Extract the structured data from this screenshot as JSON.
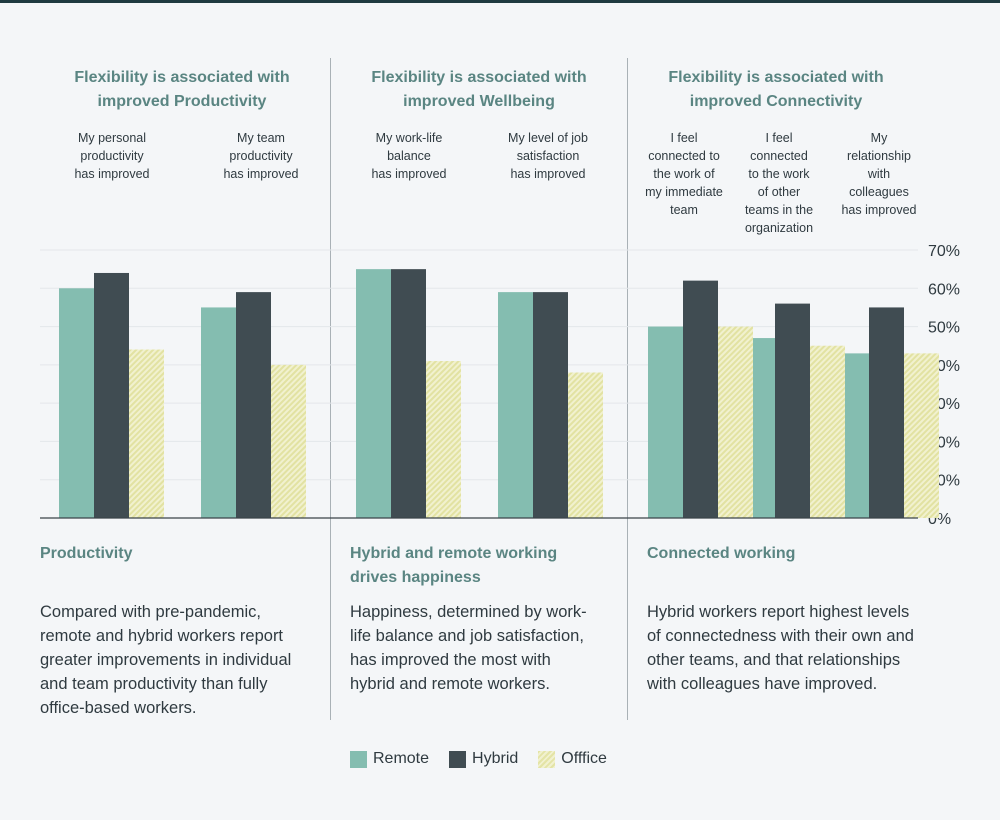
{
  "colors": {
    "remote": "#84bdb0",
    "hybrid": "#404c52",
    "office": "#e6e6ad",
    "heading": "#5a8582"
  },
  "panels": [
    {
      "title_line1": "Flexibility is associated with",
      "title_line2": "improved Productivity",
      "heading": "Productivity",
      "heading_line2": "",
      "body_lines": [
        "Compared with pre-pandemic,",
        "remote and hybrid workers report",
        "greater improvements in individual",
        "and team productivity than fully",
        "office-based workers."
      ]
    },
    {
      "title_line1": "Flexibility is associated with",
      "title_line2": "improved Wellbeing",
      "heading": "Hybrid and remote working",
      "heading_line2": "drives happiness",
      "body_lines": [
        "Happiness, determined by work-",
        "life balance and job satisfaction,",
        "has improved the most with",
        "hybrid and remote workers."
      ]
    },
    {
      "title_line1": "Flexibility is associated with",
      "title_line2": "improved Connectivity",
      "heading": "Connected working",
      "heading_line2": "",
      "body_lines": [
        "Hybrid workers report highest levels",
        "of connectedness with their own and",
        "other teams, and that relationships",
        "with colleagues have improved."
      ]
    }
  ],
  "chart_data": {
    "type": "bar",
    "categories": [
      [
        "My personal",
        "productivity",
        "has improved"
      ],
      [
        "My team",
        "productivity",
        "has improved"
      ],
      [
        "My work-life",
        "balance",
        "has improved"
      ],
      [
        "My level of job",
        "satisfaction",
        "has improved"
      ],
      [
        "I feel",
        "connected to",
        "the work of",
        "my immediate",
        "team"
      ],
      [
        "I feel",
        "connected",
        "to the work",
        "of other",
        "teams in the",
        "organization"
      ],
      [
        "My",
        "relationship",
        "with",
        "colleagues",
        "has improved"
      ]
    ],
    "series": [
      {
        "name": "Remote",
        "values": [
          60,
          55,
          65,
          59,
          50,
          47,
          43
        ]
      },
      {
        "name": "Hybrid",
        "values": [
          64,
          59,
          65,
          59,
          62,
          56,
          55
        ]
      },
      {
        "name": "Offfice",
        "values": [
          44,
          40,
          41,
          38,
          50,
          45,
          43
        ]
      }
    ],
    "ylim": [
      0,
      70
    ],
    "yticks": [
      "0%",
      "10%",
      "20%",
      "30%",
      "40%",
      "50%",
      "60%",
      "70%"
    ],
    "grid": true,
    "legend": "bottom"
  }
}
